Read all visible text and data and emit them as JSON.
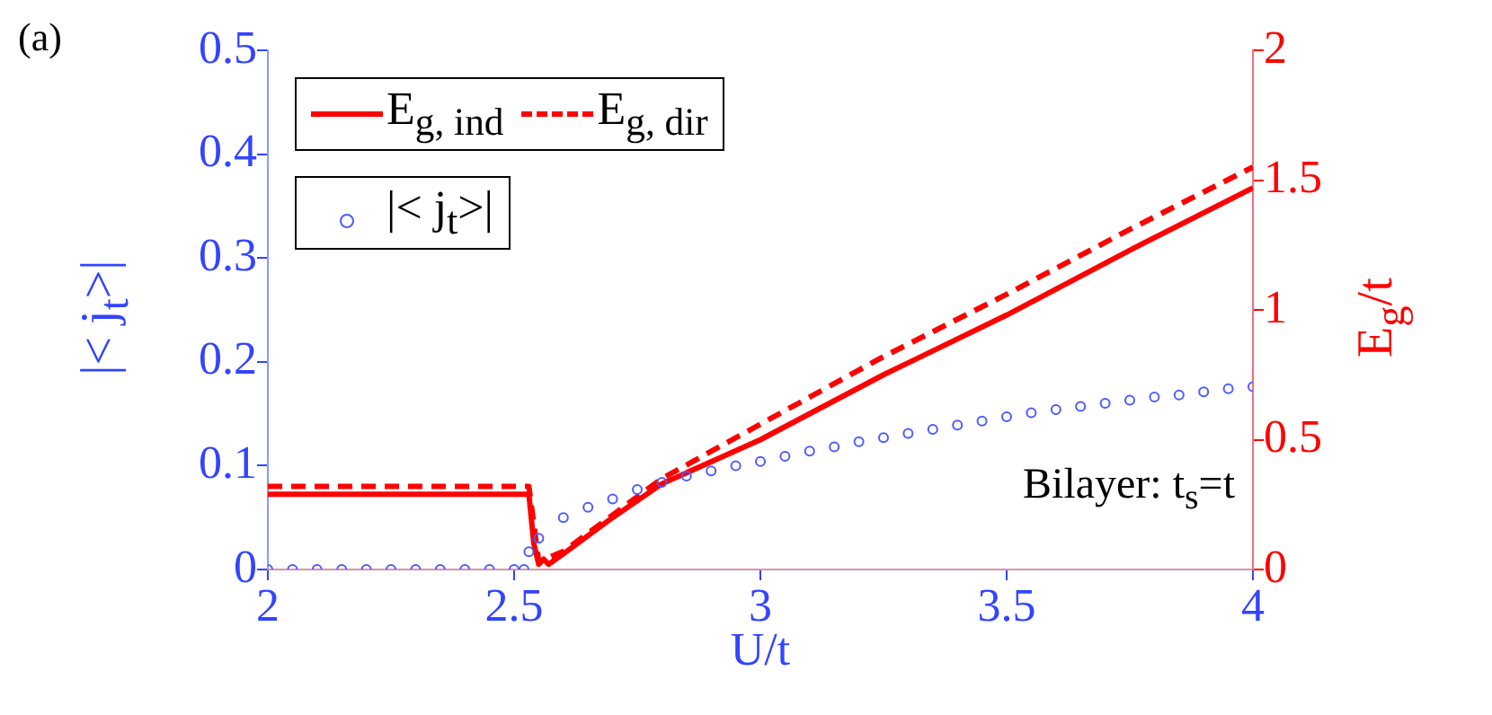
{
  "chart_data": {
    "type": "line",
    "title": "(a)",
    "xlabel": "U/t",
    "ylabel": "|< j$_{t}$>|",
    "y2label": "E$_{g}$/t",
    "annotations": [
      "Bilayer: t$_{s}$=t"
    ],
    "xlim": [
      2,
      4
    ],
    "xticks": [
      2,
      2.5,
      3,
      3.5,
      4
    ],
    "ylim": [
      0,
      0.5
    ],
    "yticks": [
      0,
      0.1,
      0.2,
      0.3,
      0.4,
      0.5
    ],
    "y2lim": [
      0,
      2
    ],
    "y2ticks": [
      0,
      0.5,
      1,
      1.5,
      2
    ],
    "grid": false,
    "legend": "top left",
    "series": [
      {
        "name": "E$_{g, ind}$",
        "type": "line",
        "axis": "y2",
        "color": "#ff0000",
        "line_style": "solid",
        "marker": "none",
        "x": [
          2,
          2.53,
          2.54,
          2.55,
          2.56,
          2.57,
          2.6,
          2.7,
          2.8,
          3,
          3.25,
          3.5,
          3.75,
          4
        ],
        "values": [
          0.29,
          0.29,
          0.1,
          0.02,
          0.04,
          0.02,
          0.06,
          0.2,
          0.33,
          0.5,
          0.75,
          0.98,
          1.23,
          1.47
        ]
      },
      {
        "name": "E$_{g, dir}$",
        "type": "line",
        "axis": "y2",
        "color": "#ff0000",
        "line_style": "dashed",
        "marker": "none",
        "x": [
          2,
          2.53,
          2.55,
          2.6,
          2.7,
          2.8,
          3,
          3.25,
          3.5,
          3.75,
          4
        ],
        "values": [
          0.32,
          0.32,
          0.03,
          0.07,
          0.21,
          0.35,
          0.56,
          0.82,
          1.06,
          1.31,
          1.55
        ]
      },
      {
        "name": "|< j$_{t}$>|",
        "type": "scatter",
        "color": "#4d5cff",
        "marker": "circle",
        "x": [
          2,
          2.05,
          2.1,
          2.15,
          2.2,
          2.25,
          2.3,
          2.35,
          2.4,
          2.45,
          2.5,
          2.52,
          2.53,
          2.55,
          2.6,
          2.65,
          2.7,
          2.75,
          2.8,
          2.85,
          2.9,
          2.95,
          3,
          3.05,
          3.1,
          3.15,
          3.2,
          3.25,
          3.3,
          3.35,
          3.4,
          3.45,
          3.5,
          3.55,
          3.6,
          3.65,
          3.7,
          3.75,
          3.8,
          3.85,
          3.9,
          3.95,
          4
        ],
        "values": [
          0,
          0,
          0,
          0,
          0,
          0,
          0,
          0,
          0,
          0,
          0,
          0,
          0.017,
          0.03,
          0.05,
          0.06,
          0.068,
          0.077,
          0.084,
          0.09,
          0.095,
          0.1,
          0.104,
          0.109,
          0.114,
          0.118,
          0.123,
          0.127,
          0.131,
          0.135,
          0.139,
          0.143,
          0.147,
          0.151,
          0.154,
          0.157,
          0.16,
          0.163,
          0.166,
          0.168,
          0.171,
          0.174,
          0.176
        ]
      }
    ]
  }
}
